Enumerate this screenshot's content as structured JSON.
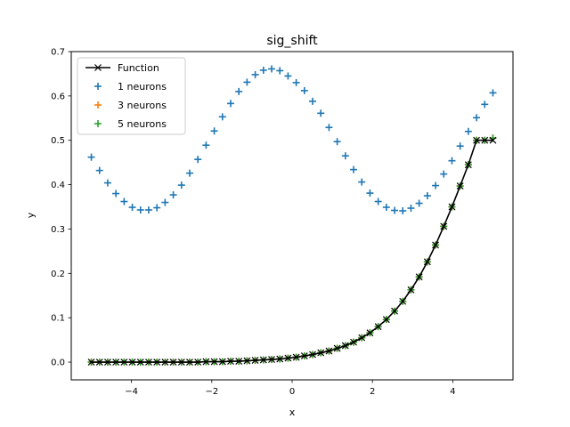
{
  "chart_data": {
    "type": "scatter",
    "title": "sig_shift",
    "xlabel": "x",
    "ylabel": "y",
    "xlim": [
      -5.5,
      5.5
    ],
    "ylim": [
      -0.04,
      0.7
    ],
    "xticks": [
      -4,
      -2,
      0,
      2,
      4
    ],
    "yticks": [
      0.0,
      0.1,
      0.2,
      0.3,
      0.4,
      0.5,
      0.6,
      0.7
    ],
    "xtick_labels": [
      "−4",
      "−2",
      "0",
      "2",
      "4"
    ],
    "ytick_labels": [
      "0.0",
      "0.1",
      "0.2",
      "0.3",
      "0.4",
      "0.5",
      "0.6",
      "0.7"
    ],
    "legend_position": "top-left",
    "series": [
      {
        "name": "Function",
        "style": "line-x",
        "color": "#000000",
        "x_range": [
          -5,
          5
        ],
        "n": 50,
        "y": [
          0.0,
          0.0,
          0.0,
          0.0,
          0.0,
          0.0,
          0.0,
          0.0,
          0.0,
          0.0,
          0.0,
          0.0,
          0.0,
          0.0,
          0.001,
          0.001,
          0.001,
          0.002,
          0.002,
          0.003,
          0.004,
          0.005,
          0.006,
          0.007,
          0.009,
          0.011,
          0.014,
          0.017,
          0.021,
          0.025,
          0.031,
          0.037,
          0.045,
          0.055,
          0.066,
          0.08,
          0.096,
          0.115,
          0.137,
          0.163,
          0.192,
          0.226,
          0.264,
          0.306,
          0.35,
          0.397,
          0.445,
          0.5,
          0.5,
          0.5
        ]
      },
      {
        "name": "1 neurons",
        "style": "plus",
        "color": "#1f77b4",
        "x_range": [
          -5,
          5
        ],
        "n": 50,
        "y": [
          0.462,
          0.432,
          0.404,
          0.38,
          0.362,
          0.349,
          0.343,
          0.343,
          0.348,
          0.36,
          0.377,
          0.399,
          0.426,
          0.457,
          0.489,
          0.521,
          0.553,
          0.583,
          0.61,
          0.631,
          0.648,
          0.658,
          0.661,
          0.657,
          0.645,
          0.63,
          0.612,
          0.588,
          0.561,
          0.529,
          0.497,
          0.465,
          0.434,
          0.406,
          0.381,
          0.362,
          0.349,
          0.342,
          0.341,
          0.347,
          0.358,
          0.375,
          0.398,
          0.424,
          0.454,
          0.487,
          0.52,
          0.551,
          0.581,
          0.607
        ]
      },
      {
        "name": "3 neurons",
        "style": "plus",
        "color": "#ff7f0e",
        "x_range": [
          -5,
          5
        ],
        "n": 50,
        "y": [
          0.0,
          0.0,
          0.0,
          0.0,
          0.0,
          0.0,
          0.0,
          0.0,
          0.0,
          0.0,
          0.0,
          0.0,
          0.0,
          0.0,
          0.001,
          0.001,
          0.001,
          0.002,
          0.002,
          0.003,
          0.004,
          0.005,
          0.006,
          0.007,
          0.009,
          0.011,
          0.014,
          0.017,
          0.021,
          0.025,
          0.031,
          0.037,
          0.045,
          0.055,
          0.066,
          0.08,
          0.096,
          0.115,
          0.137,
          0.163,
          0.192,
          0.226,
          0.264,
          0.306,
          0.35,
          0.397,
          0.445,
          0.5,
          0.5,
          0.505
        ]
      },
      {
        "name": "5 neurons",
        "style": "plus",
        "color": "#2ca02c",
        "x_range": [
          -5,
          5
        ],
        "n": 50,
        "y": [
          0.0,
          0.0,
          0.0,
          0.0,
          0.0,
          0.0,
          0.0,
          0.0,
          0.0,
          0.0,
          0.0,
          0.0,
          0.0,
          0.0,
          0.001,
          0.001,
          0.001,
          0.002,
          0.002,
          0.003,
          0.004,
          0.005,
          0.006,
          0.007,
          0.009,
          0.011,
          0.014,
          0.017,
          0.021,
          0.025,
          0.031,
          0.037,
          0.045,
          0.055,
          0.066,
          0.08,
          0.096,
          0.115,
          0.137,
          0.163,
          0.192,
          0.226,
          0.264,
          0.306,
          0.35,
          0.397,
          0.445,
          0.5,
          0.5,
          0.505
        ]
      }
    ]
  }
}
